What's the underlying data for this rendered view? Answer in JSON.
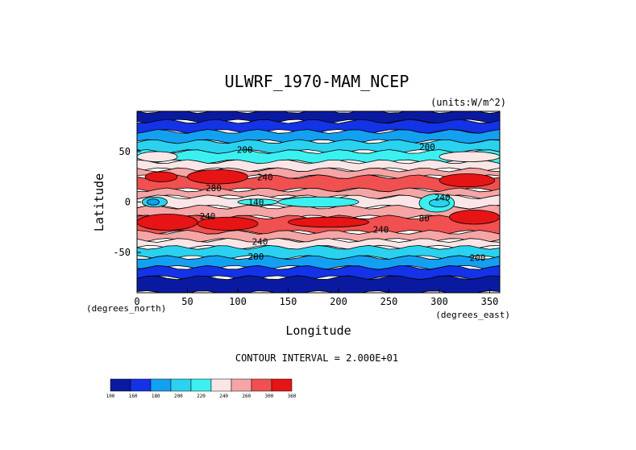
{
  "chart_data": {
    "type": "heatmap",
    "title": "ULWRF_1970-MAM_NCEP",
    "units": "(units:W/m^2)",
    "xlabel": "Longitude",
    "ylabel": "Latitude",
    "x_unit_note": "(degrees_east)",
    "y_unit_note": "(degrees_north)",
    "xlim": [
      0,
      360
    ],
    "ylim": [
      -90,
      90
    ],
    "x_ticks": [
      0,
      50,
      100,
      150,
      200,
      250,
      300,
      350
    ],
    "y_ticks": [
      50,
      0,
      -50
    ],
    "contour_interval_text": "CONTOUR INTERVAL = 2.000E+01",
    "colorbar": {
      "ticks": [
        "100",
        "160",
        "180",
        "200",
        "220",
        "240",
        "260",
        "300",
        "360"
      ],
      "colors": [
        "#0a1aa0",
        "#1432e6",
        "#14a0f0",
        "#2ad2f0",
        "#3cf0f0",
        "#fae6e6",
        "#f5a5a5",
        "#f05050",
        "#e61414"
      ]
    },
    "bands": [
      {
        "lat": [
          80,
          90
        ],
        "level": 0
      },
      {
        "lat": [
          70,
          80
        ],
        "level": 1
      },
      {
        "lat": [
          60,
          70
        ],
        "level": 2
      },
      {
        "lat": [
          50,
          60
        ],
        "level": 3
      },
      {
        "lat": [
          40,
          50
        ],
        "level": 4
      },
      {
        "lat": [
          32,
          40
        ],
        "level": 5
      },
      {
        "lat": [
          25,
          32
        ],
        "level": 6
      },
      {
        "lat": [
          12,
          25
        ],
        "level": 7
      },
      {
        "lat": [
          5,
          12
        ],
        "level": 6
      },
      {
        "lat": [
          -5,
          5
        ],
        "level": 5
      },
      {
        "lat": [
          -15,
          -5
        ],
        "level": 6
      },
      {
        "lat": [
          -30,
          -15
        ],
        "level": 7
      },
      {
        "lat": [
          -38,
          -30
        ],
        "level": 6
      },
      {
        "lat": [
          -45,
          -38
        ],
        "level": 5
      },
      {
        "lat": [
          -55,
          -45
        ],
        "level": 3
      },
      {
        "lat": [
          -65,
          -55
        ],
        "level": 2
      },
      {
        "lat": [
          -75,
          -65
        ],
        "level": 1
      },
      {
        "lat": [
          -90,
          -75
        ],
        "level": 0
      }
    ],
    "features": [
      {
        "lon": [
          8,
          40
        ],
        "lat": [
          20,
          30
        ],
        "level": 8
      },
      {
        "lon": [
          50,
          110
        ],
        "lat": [
          18,
          32
        ],
        "level": 8
      },
      {
        "lon": [
          300,
          355
        ],
        "lat": [
          15,
          28
        ],
        "level": 8
      },
      {
        "lon": [
          0,
          60
        ],
        "lat": [
          -28,
          -12
        ],
        "level": 8
      },
      {
        "lon": [
          60,
          120
        ],
        "lat": [
          -28,
          -15
        ],
        "level": 8
      },
      {
        "lon": [
          150,
          230
        ],
        "lat": [
          -25,
          -15
        ],
        "level": 8
      },
      {
        "lon": [
          310,
          360
        ],
        "lat": [
          -22,
          -8
        ],
        "level": 8
      },
      {
        "lon": [
          5,
          30
        ],
        "lat": [
          -5,
          5
        ],
        "level": 3
      },
      {
        "lon": [
          10,
          22
        ],
        "lat": [
          -3,
          3
        ],
        "level": 2
      },
      {
        "lon": [
          140,
          220
        ],
        "lat": [
          -5,
          5
        ],
        "level": 4
      },
      {
        "lon": [
          100,
          140
        ],
        "lat": [
          -3,
          3
        ],
        "level": 4
      },
      {
        "lon": [
          280,
          315
        ],
        "lat": [
          -10,
          8
        ],
        "level": 4
      },
      {
        "lon": [
          290,
          310
        ],
        "lat": [
          -5,
          3
        ],
        "level": 3
      },
      {
        "lon": [
          300,
          360
        ],
        "lat": [
          40,
          50
        ],
        "level": 5
      },
      {
        "lon": [
          0,
          40
        ],
        "lat": [
          40,
          50
        ],
        "level": 5
      }
    ],
    "contour_labels": [
      {
        "text": "200",
        "lon": 107,
        "lat": 52
      },
      {
        "text": "200",
        "lon": 288,
        "lat": 55
      },
      {
        "text": "240",
        "lon": 127,
        "lat": 25
      },
      {
        "text": "240",
        "lon": 303,
        "lat": 5
      },
      {
        "text": "280",
        "lon": 76,
        "lat": 14
      },
      {
        "text": "240",
        "lon": 70,
        "lat": -14
      },
      {
        "text": "240",
        "lon": 122,
        "lat": -39
      },
      {
        "text": "240",
        "lon": 242,
        "lat": -27
      },
      {
        "text": "200",
        "lon": 118,
        "lat": -54
      },
      {
        "text": "200",
        "lon": 338,
        "lat": -55
      },
      {
        "text": "140",
        "lon": 118,
        "lat": 0
      },
      {
        "text": "80",
        "lon": 285,
        "lat": -16
      }
    ]
  }
}
